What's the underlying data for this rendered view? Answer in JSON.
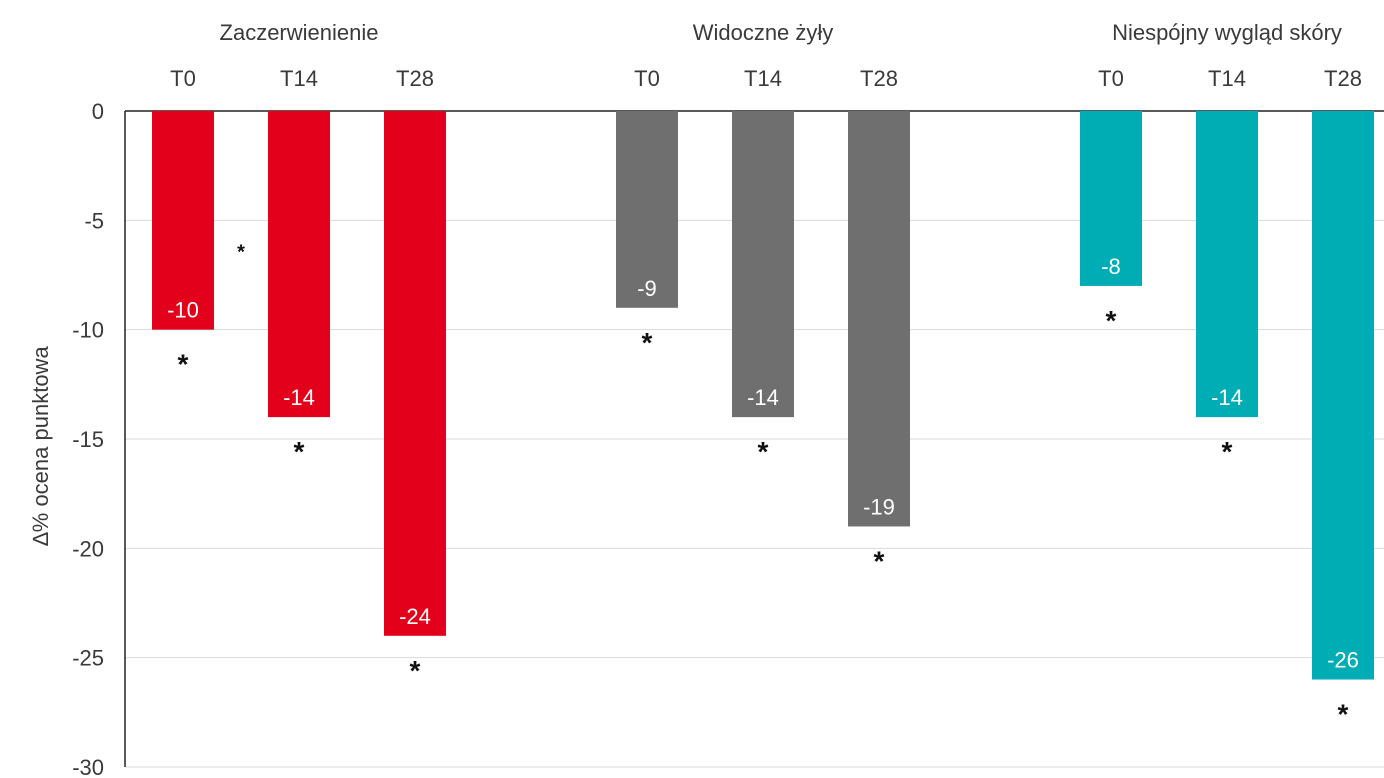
{
  "chart_data": {
    "type": "bar",
    "ylabel": "∆% ocena punktowa",
    "ylim": [
      -30,
      0
    ],
    "yticks": [
      0,
      -5,
      -10,
      -15,
      -20,
      -25,
      -30
    ],
    "grid": true,
    "groups": [
      {
        "name": "Zaczerwienienie",
        "color": "#e2001a",
        "bars": [
          {
            "period": "T0",
            "value": -10,
            "label": "-10",
            "significance": "*"
          },
          {
            "period": "T14",
            "value": -14,
            "label": "-14",
            "significance": "*"
          },
          {
            "period": "T28",
            "value": -24,
            "label": "-24",
            "significance": "*"
          }
        ]
      },
      {
        "name": "Widoczne żyły",
        "color": "#6f6f6f",
        "bars": [
          {
            "period": "T0",
            "value": -9,
            "label": "-9",
            "significance": "*"
          },
          {
            "period": "T14",
            "value": -14,
            "label": "-14",
            "significance": "*"
          },
          {
            "period": "T28",
            "value": -19,
            "label": "-19",
            "significance": "*"
          }
        ]
      },
      {
        "name": "Niespójny wygląd skóry",
        "color": "#00adb5",
        "bars": [
          {
            "period": "T0",
            "value": -8,
            "label": "-8",
            "significance": "*"
          },
          {
            "period": "T14",
            "value": -14,
            "label": "-14",
            "significance": "*"
          },
          {
            "period": "T28",
            "value": -26,
            "label": "-26",
            "significance": "*"
          }
        ]
      }
    ],
    "annotations": [
      {
        "text": "*",
        "group": "Zaczerwienienie",
        "between": [
          "T0",
          "T14"
        ],
        "value": -6.2
      }
    ]
  }
}
